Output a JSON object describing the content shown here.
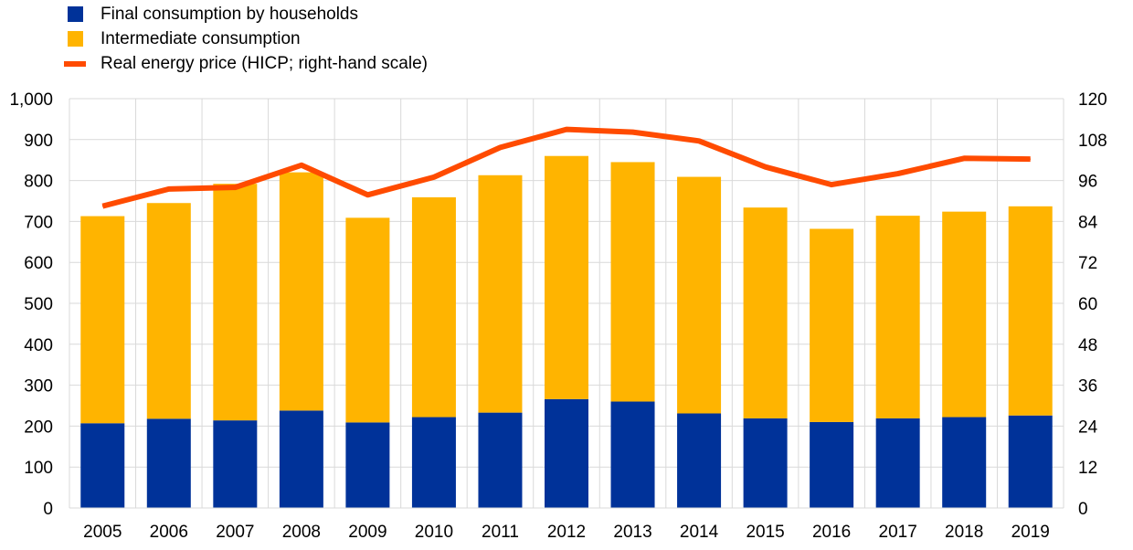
{
  "chart_data": {
    "type": "bar",
    "stacked": true,
    "categories": [
      "2005",
      "2006",
      "2007",
      "2008",
      "2009",
      "2010",
      "2011",
      "2012",
      "2013",
      "2014",
      "2015",
      "2016",
      "2017",
      "2018",
      "2019"
    ],
    "series": [
      {
        "name": "Final consumption by households",
        "kind": "bar",
        "axis": "left",
        "color": "#003299",
        "values": [
          207,
          218,
          214,
          238,
          209,
          222,
          233,
          266,
          260,
          231,
          219,
          210,
          219,
          222,
          226
        ]
      },
      {
        "name": "Intermediate consumption",
        "kind": "bar",
        "axis": "left",
        "color": "#FFB400",
        "values": [
          506,
          527,
          578,
          582,
          500,
          537,
          580,
          594,
          585,
          578,
          515,
          472,
          495,
          502,
          511
        ]
      },
      {
        "name": "Real energy price (HICP; right-hand scale)",
        "kind": "line",
        "axis": "right",
        "color": "#FF4B00",
        "values": [
          88.5,
          93.5,
          94.0,
          100.5,
          91.8,
          97.0,
          105.7,
          111.0,
          110.2,
          107.6,
          100.0,
          94.8,
          98.0,
          102.5,
          102.3
        ]
      }
    ],
    "left_axis": {
      "min": 0,
      "max": 1000,
      "ticks": [
        "0",
        "100",
        "200",
        "300",
        "400",
        "500",
        "600",
        "700",
        "800",
        "900",
        "1,000"
      ]
    },
    "right_axis": {
      "min": 0,
      "max": 120,
      "ticks": [
        "0",
        "12",
        "24",
        "36",
        "48",
        "60",
        "72",
        "84",
        "96",
        "108",
        "120"
      ]
    },
    "grid": true,
    "legend_position": "top-left"
  }
}
